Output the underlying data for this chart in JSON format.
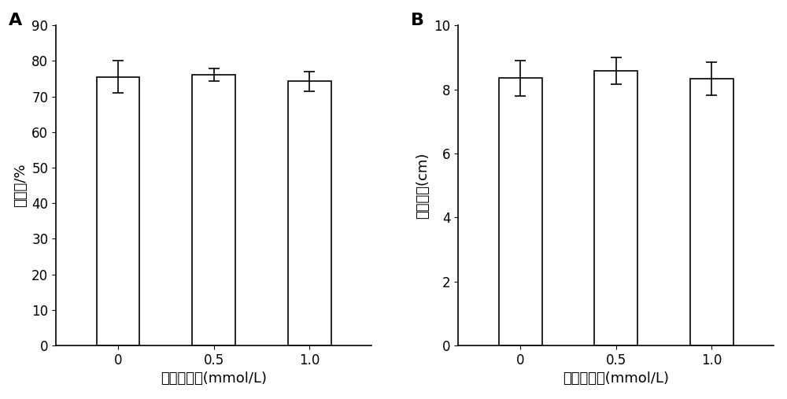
{
  "panel_A": {
    "label": "A",
    "categories": [
      "0",
      "0.5",
      "1.0"
    ],
    "values": [
      75.5,
      76.2,
      74.3
    ],
    "errors": [
      4.5,
      1.8,
      2.8
    ],
    "ylabel": "萌发率/%",
    "xlabel": "厘啖酸浓度(mmol/L)",
    "ylim": [
      0,
      90
    ],
    "yticks": [
      0,
      10,
      20,
      30,
      40,
      50,
      60,
      70,
      80,
      90
    ]
  },
  "panel_B": {
    "label": "B",
    "categories": [
      "0",
      "0.5",
      "1.0"
    ],
    "values": [
      8.35,
      8.58,
      8.33
    ],
    "errors": [
      0.55,
      0.42,
      0.52
    ],
    "ylabel": "菌落直径(cm)",
    "xlabel": "厘啖酸浓度(mmol/L)",
    "ylim": [
      0,
      10
    ],
    "yticks": [
      0,
      2,
      4,
      6,
      8,
      10
    ]
  },
  "bar_color": "#ffffff",
  "bar_edgecolor": "#000000",
  "bar_width": 0.45,
  "capsize": 5,
  "background_color": "#ffffff",
  "label_fontsize": 16,
  "tick_fontsize": 12,
  "axis_label_fontsize": 13
}
